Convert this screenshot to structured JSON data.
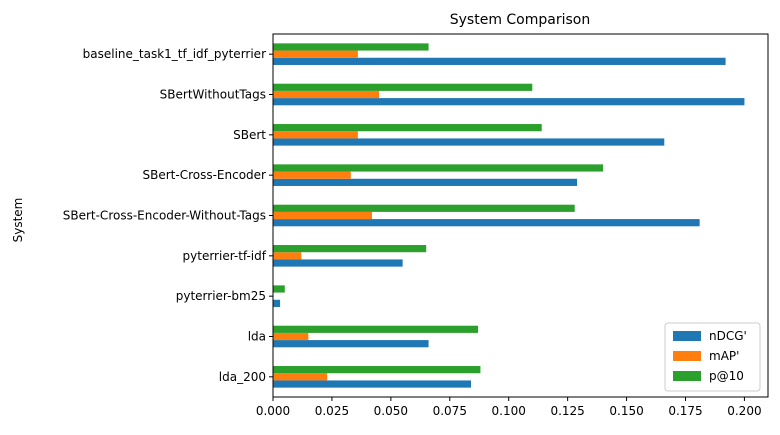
{
  "chart_data": {
    "type": "bar",
    "orientation": "horizontal",
    "title": "System Comparison",
    "xlabel": "",
    "ylabel": "System",
    "xlim": [
      0,
      0.21
    ],
    "xticks": [
      0.0,
      0.025,
      0.05,
      0.075,
      0.1,
      0.125,
      0.15,
      0.175,
      0.2
    ],
    "xtick_labels": [
      "0.000",
      "0.025",
      "0.050",
      "0.075",
      "0.100",
      "0.125",
      "0.150",
      "0.175",
      "0.200"
    ],
    "categories": [
      "baseline_task1_tf_idf_pyterrier",
      "SBertWithoutTags",
      "SBert",
      "SBert-Cross-Encoder",
      "SBert-Cross-Encoder-Without-Tags",
      "pyterrier-tf-idf",
      "pyterrier-bm25",
      "lda",
      "lda_200"
    ],
    "series": [
      {
        "name": "nDCG'",
        "color": "#1f77b4",
        "values": [
          0.192,
          0.2,
          0.166,
          0.129,
          0.181,
          0.055,
          0.003,
          0.066,
          0.084
        ]
      },
      {
        "name": "mAP'",
        "color": "#ff7f0e",
        "values": [
          0.036,
          0.045,
          0.036,
          0.033,
          0.042,
          0.012,
          0.0,
          0.015,
          0.023
        ]
      },
      {
        "name": "p@10",
        "color": "#2ca02c",
        "values": [
          0.066,
          0.11,
          0.114,
          0.14,
          0.128,
          0.065,
          0.005,
          0.087,
          0.088
        ]
      }
    ],
    "grid": false,
    "legend_position": "lower-right"
  }
}
